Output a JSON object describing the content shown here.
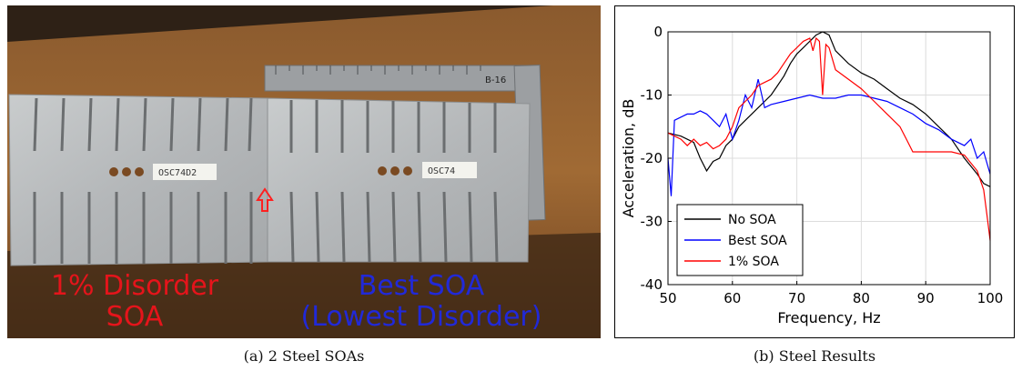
{
  "figure": {
    "photo": {
      "caption": "(a) 2 Steel SOAs",
      "label_left_line1": "1% Disorder",
      "label_left_line2": "SOA",
      "label_right_line1": "Best SOA",
      "label_right_line2": "(Lowest Disorder)",
      "tag_left": "OSC74D2",
      "tag_right": "OSC74",
      "ruler_mark": "B-16",
      "colors": {
        "left_label": "#e5141b",
        "right_label": "#2129d8",
        "wood": "#7a4a22",
        "steel": "#b9bcbe"
      }
    },
    "results_caption": "(b) Steel Results"
  },
  "chart_data": {
    "type": "line",
    "xlabel": "Frequency, Hz",
    "ylabel": "Acceleration, dB",
    "xlim": [
      50,
      100
    ],
    "ylim": [
      -40,
      0
    ],
    "xticks": [
      50,
      60,
      70,
      80,
      90,
      100
    ],
    "yticks": [
      -40,
      -30,
      -20,
      -10,
      0
    ],
    "grid": true,
    "legend_position": "bottom-left",
    "series": [
      {
        "name": "No SOA",
        "color": "#000000",
        "x": [
          50,
          52,
          54,
          55,
          56,
          57,
          58,
          59,
          60,
          61,
          62,
          63,
          64,
          65,
          66,
          67,
          68,
          69,
          70,
          71,
          72,
          73,
          74,
          75,
          76,
          78,
          80,
          82,
          84,
          86,
          88,
          90,
          92,
          94,
          96,
          98,
          99,
          100
        ],
        "y": [
          -16,
          -16.5,
          -17.5,
          -20,
          -22,
          -20.5,
          -20,
          -18,
          -17,
          -15,
          -14,
          -13,
          -12,
          -11,
          -10,
          -8.5,
          -7,
          -5,
          -3.5,
          -2.5,
          -1.5,
          -0.5,
          0,
          -0.5,
          -3,
          -5,
          -6.5,
          -7.5,
          -9,
          -10.5,
          -11.5,
          -13,
          -15,
          -17,
          -20,
          -22.5,
          -24,
          -24.5
        ]
      },
      {
        "name": "Best SOA",
        "color": "#0000ff",
        "x": [
          50,
          50.5,
          51,
          52,
          53,
          54,
          55,
          56,
          57,
          58,
          59,
          60,
          61,
          62,
          63,
          64,
          65,
          66,
          68,
          70,
          72,
          74,
          76,
          78,
          80,
          82,
          84,
          86,
          88,
          90,
          92,
          94,
          96,
          97,
          98,
          99,
          100
        ],
        "y": [
          -20,
          -26,
          -14,
          -13.5,
          -13,
          -13,
          -12.5,
          -13,
          -14,
          -15,
          -13,
          -17,
          -14,
          -10,
          -12,
          -7.5,
          -12,
          -11.5,
          -11,
          -10.5,
          -10,
          -10.5,
          -10.5,
          -10,
          -10,
          -10.5,
          -11,
          -12,
          -13,
          -14.5,
          -15.5,
          -17,
          -18,
          -17,
          -20,
          -19,
          -22.5
        ]
      },
      {
        "name": "1% SOA",
        "color": "#ff0000",
        "x": [
          50,
          52,
          53,
          54,
          55,
          56,
          57,
          58,
          59,
          60,
          61,
          62,
          63,
          64,
          65,
          66,
          67,
          68,
          69,
          70,
          71,
          72,
          72.5,
          73,
          73.5,
          74,
          74.5,
          75,
          76,
          78,
          80,
          82,
          84,
          86,
          87,
          88,
          90,
          92,
          94,
          96,
          98,
          99,
          99.5,
          100
        ],
        "y": [
          -16,
          -17,
          -18,
          -17,
          -18,
          -17.5,
          -18.5,
          -18,
          -17,
          -15,
          -12,
          -11,
          -10,
          -8.5,
          -8,
          -7.5,
          -6.5,
          -5,
          -3.5,
          -2.5,
          -1.5,
          -1,
          -3,
          -1,
          -1.5,
          -10,
          -2,
          -2.5,
          -6,
          -7.5,
          -9,
          -11,
          -13,
          -15,
          -17,
          -19,
          -19,
          -19,
          -19,
          -19.5,
          -22,
          -25,
          -29,
          -33
        ]
      }
    ]
  }
}
